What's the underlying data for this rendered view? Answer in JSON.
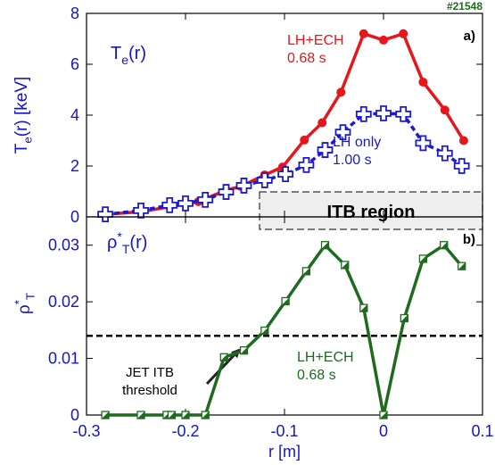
{
  "chart_data": [
    {
      "type": "line",
      "id_label": "#21548",
      "panel_label": "a)",
      "inner_label": {
        "base": "T",
        "sub": "e",
        "tail": "(r)"
      },
      "y_label": {
        "base": "T",
        "sub": "e",
        "tail": "(r) [keV]"
      },
      "region_label": "ITB region",
      "xlim": [
        -0.3,
        0.1
      ],
      "ylim": [
        0,
        8
      ],
      "yticks": [
        0,
        2,
        4,
        6,
        8
      ],
      "series": [
        {
          "name": "LH+ECH",
          "time": "0.68 s",
          "color": "#e8161b",
          "x": [
            -0.281,
            -0.245,
            -0.216,
            -0.187,
            -0.159,
            -0.144,
            -0.12,
            -0.102,
            -0.08,
            -0.062,
            -0.043,
            -0.02,
            0,
            0.02,
            0.04,
            0.062,
            0.081
          ],
          "values": [
            0.1,
            0.2,
            0.4,
            0.6,
            1.05,
            1.2,
            1.65,
            1.96,
            3.02,
            3.7,
            4.9,
            7.2,
            6.95,
            7.2,
            5.3,
            4.2,
            3.0
          ]
        },
        {
          "name": "LH only",
          "time": "1.00 s",
          "color": "#1a1ad0",
          "x": [
            -0.281,
            -0.245,
            -0.216,
            -0.2,
            -0.18,
            -0.159,
            -0.141,
            -0.12,
            -0.099,
            -0.078,
            -0.059,
            -0.041,
            -0.02,
            0,
            0.02,
            0.04,
            0.062,
            0.079
          ],
          "values": [
            0.1,
            0.25,
            0.46,
            0.53,
            0.67,
            0.98,
            1.23,
            1.44,
            1.68,
            2.04,
            2.63,
            3.33,
            4.04,
            4.07,
            4.04,
            2.9,
            2.5,
            2.0
          ]
        }
      ]
    },
    {
      "type": "line",
      "panel_label": "b)",
      "inner_label": {
        "base": "ρ",
        "sup": "*",
        "sub": "T",
        "tail": "(r)"
      },
      "y_label": {
        "base": "ρ",
        "sup": "*",
        "sub": "T"
      },
      "x_label": "r [m]",
      "threshold": {
        "value": 0.014,
        "label": [
          "JET ITB",
          "threshold"
        ]
      },
      "xlim": [
        -0.3,
        0.1
      ],
      "xticks": [
        -0.3,
        -0.2,
        -0.1,
        0,
        0.1
      ],
      "ylim": [
        0,
        0.035
      ],
      "yticks": [
        0,
        0.01,
        0.02,
        0.03
      ],
      "series": [
        {
          "name": "LH+ECH",
          "time": "0.68 s",
          "color": "#1e6b1e",
          "x": [
            -0.281,
            -0.245,
            -0.219,
            -0.214,
            -0.2,
            -0.18,
            -0.161,
            -0.141,
            -0.12,
            -0.099,
            -0.078,
            -0.059,
            -0.039,
            -0.02,
            0,
            0.021,
            0.04,
            0.061,
            0.079
          ],
          "values": [
            0,
            0,
            0,
            0,
            0,
            0,
            0.0102,
            0.0114,
            0.0149,
            0.0201,
            0.0254,
            0.03,
            0.0265,
            0.0189,
            0,
            0.0171,
            0.0276,
            0.03,
            0.0263
          ]
        }
      ]
    }
  ]
}
